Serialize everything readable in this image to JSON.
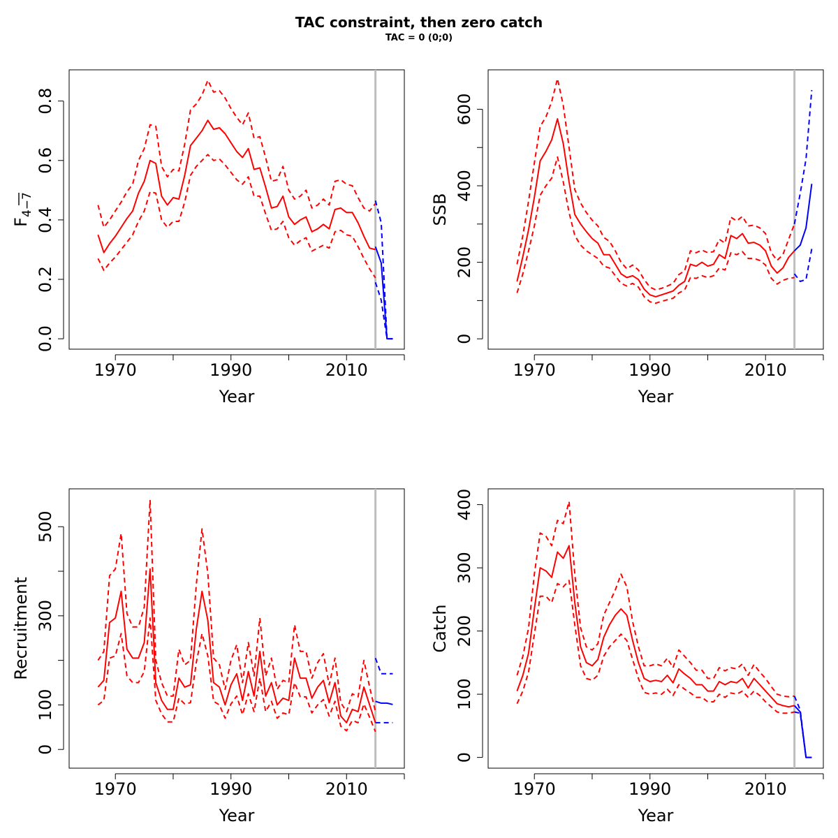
{
  "title": "TAC constraint, then zero catch",
  "subtitle": "TAC = 0 (0;0)",
  "colors": {
    "history": "#ff0000",
    "forecast": "#0000ff",
    "divider": "#bebebe",
    "axis": "#000000"
  },
  "chart_data": [
    {
      "id": "fbar",
      "type": "line",
      "xlabel": "Year",
      "ylabel": "F",
      "ylabel_sub": "4−7",
      "xlim": [
        1962,
        2020
      ],
      "ylim": [
        -0.035,
        0.905
      ],
      "xticks": [
        1970,
        1980,
        1990,
        2000,
        2010,
        2020
      ],
      "xtick_labels": [
        "1970",
        "",
        "1990",
        "",
        "2010",
        ""
      ],
      "yticks": [
        0,
        0.2,
        0.4,
        0.6,
        0.8
      ],
      "ytick_labels": [
        "0.0",
        "0.2",
        "0.4",
        "0.6",
        "0.8"
      ],
      "divider_x": 2015,
      "history": {
        "x": [
          1967,
          1968,
          1969,
          1970,
          1971,
          1972,
          1973,
          1974,
          1975,
          1976,
          1977,
          1978,
          1979,
          1980,
          1981,
          1982,
          1983,
          1984,
          1985,
          1986,
          1987,
          1988,
          1989,
          1990,
          1991,
          1992,
          1993,
          1994,
          1995,
          1996,
          1997,
          1998,
          1999,
          2000,
          2001,
          2002,
          2003,
          2004,
          2005,
          2006,
          2007,
          2008,
          2009,
          2010,
          2011,
          2012,
          2013,
          2014,
          2015
        ],
        "mid": [
          0.35,
          0.29,
          0.32,
          0.345,
          0.375,
          0.405,
          0.43,
          0.49,
          0.53,
          0.6,
          0.59,
          0.48,
          0.45,
          0.475,
          0.47,
          0.55,
          0.65,
          0.675,
          0.7,
          0.735,
          0.705,
          0.71,
          0.69,
          0.66,
          0.63,
          0.61,
          0.64,
          0.57,
          0.575,
          0.51,
          0.44,
          0.445,
          0.48,
          0.41,
          0.385,
          0.4,
          0.41,
          0.36,
          0.37,
          0.385,
          0.37,
          0.435,
          0.44,
          0.425,
          0.425,
          0.39,
          0.345,
          0.305,
          0.3
        ],
        "low": [
          0.27,
          0.23,
          0.255,
          0.275,
          0.3,
          0.325,
          0.35,
          0.395,
          0.43,
          0.495,
          0.49,
          0.4,
          0.375,
          0.395,
          0.395,
          0.46,
          0.55,
          0.58,
          0.6,
          0.62,
          0.6,
          0.605,
          0.585,
          0.56,
          0.535,
          0.52,
          0.545,
          0.48,
          0.48,
          0.42,
          0.365,
          0.37,
          0.395,
          0.34,
          0.315,
          0.33,
          0.34,
          0.295,
          0.305,
          0.315,
          0.305,
          0.36,
          0.365,
          0.35,
          0.345,
          0.31,
          0.27,
          0.235,
          0.205
        ],
        "high": [
          0.45,
          0.375,
          0.4,
          0.43,
          0.46,
          0.495,
          0.52,
          0.6,
          0.64,
          0.72,
          0.715,
          0.58,
          0.545,
          0.57,
          0.565,
          0.655,
          0.77,
          0.79,
          0.82,
          0.87,
          0.83,
          0.835,
          0.81,
          0.775,
          0.745,
          0.72,
          0.76,
          0.675,
          0.68,
          0.61,
          0.53,
          0.535,
          0.58,
          0.5,
          0.47,
          0.48,
          0.5,
          0.44,
          0.45,
          0.47,
          0.45,
          0.53,
          0.535,
          0.52,
          0.515,
          0.475,
          0.44,
          0.43,
          0.455
        ]
      },
      "forecast": {
        "x": [
          2015,
          2016,
          2017,
          2018
        ],
        "mid": [
          0.31,
          0.255,
          0.0,
          0.0
        ],
        "low": [
          0.19,
          0.13,
          0.0,
          0.0
        ],
        "high": [
          0.465,
          0.39,
          0.0,
          0.0
        ]
      }
    },
    {
      "id": "ssb",
      "type": "line",
      "xlabel": "Year",
      "ylabel": "SSB",
      "xlim": [
        1962,
        2020
      ],
      "ylim": [
        -27,
        703
      ],
      "xticks": [
        1970,
        1980,
        1990,
        2000,
        2010,
        2020
      ],
      "xtick_labels": [
        "1970",
        "",
        "1990",
        "",
        "2010",
        ""
      ],
      "yticks": [
        0,
        100,
        200,
        300,
        400,
        500,
        600
      ],
      "ytick_labels": [
        "0",
        "",
        "200",
        "",
        "400",
        "",
        "600"
      ],
      "divider_x": 2015,
      "history": {
        "x": [
          1967,
          1968,
          1969,
          1970,
          1971,
          1972,
          1973,
          1974,
          1975,
          1976,
          1977,
          1978,
          1979,
          1980,
          1981,
          1982,
          1983,
          1984,
          1985,
          1986,
          1987,
          1988,
          1989,
          1990,
          1991,
          1992,
          1993,
          1994,
          1995,
          1996,
          1997,
          1998,
          1999,
          2000,
          2001,
          2002,
          2003,
          2004,
          2005,
          2006,
          2007,
          2008,
          2009,
          2010,
          2011,
          2012,
          2013,
          2014,
          2015
        ],
        "mid": [
          150,
          215,
          285,
          370,
          465,
          490,
          520,
          575,
          510,
          410,
          325,
          300,
          280,
          262,
          250,
          220,
          220,
          195,
          170,
          160,
          165,
          155,
          130,
          115,
          110,
          115,
          120,
          125,
          140,
          150,
          195,
          190,
          200,
          190,
          195,
          220,
          210,
          270,
          262,
          275,
          250,
          252,
          245,
          230,
          190,
          172,
          185,
          213,
          230
        ],
        "low": [
          120,
          170,
          230,
          295,
          375,
          400,
          420,
          475,
          410,
          330,
          270,
          245,
          230,
          220,
          210,
          190,
          185,
          165,
          145,
          138,
          145,
          135,
          110,
          97,
          93,
          98,
          102,
          106,
          120,
          128,
          160,
          158,
          165,
          160,
          165,
          185,
          180,
          225,
          220,
          228,
          210,
          210,
          205,
          193,
          158,
          143,
          153,
          158,
          160
        ],
        "high": [
          195,
          270,
          360,
          460,
          555,
          580,
          620,
          680,
          610,
          500,
          390,
          355,
          330,
          310,
          295,
          265,
          255,
          230,
          200,
          183,
          193,
          180,
          155,
          135,
          128,
          132,
          138,
          145,
          168,
          178,
          230,
          225,
          232,
          225,
          228,
          260,
          250,
          318,
          308,
          320,
          295,
          297,
          290,
          275,
          225,
          205,
          220,
          260,
          300
        ]
      },
      "forecast": {
        "x": [
          2015,
          2016,
          2017,
          2018
        ],
        "mid": [
          230,
          245,
          290,
          405
        ],
        "low": [
          170,
          150,
          155,
          235
        ],
        "high": [
          300,
          380,
          470,
          650
        ]
      }
    },
    {
      "id": "recruitment",
      "type": "line",
      "xlabel": "Year",
      "ylabel": "Recruitment",
      "xlim": [
        1962,
        2020
      ],
      "ylim": [
        -42,
        585
      ],
      "xticks": [
        1970,
        1980,
        1990,
        2000,
        2010,
        2020
      ],
      "xtick_labels": [
        "1970",
        "",
        "1990",
        "",
        "2010",
        ""
      ],
      "yticks": [
        0,
        100,
        200,
        300,
        400,
        500
      ],
      "ytick_labels": [
        "0",
        "100",
        "",
        "300",
        "",
        "500"
      ],
      "divider_x": 2015,
      "history": {
        "x": [
          1967,
          1968,
          1969,
          1970,
          1971,
          1972,
          1973,
          1974,
          1975,
          1976,
          1977,
          1978,
          1979,
          1980,
          1981,
          1982,
          1983,
          1984,
          1985,
          1986,
          1987,
          1988,
          1989,
          1990,
          1991,
          1992,
          1993,
          1994,
          1995,
          1996,
          1997,
          1998,
          1999,
          2000,
          2001,
          2002,
          2003,
          2004,
          2005,
          2006,
          2007,
          2008,
          2009,
          2010,
          2011,
          2012,
          2013,
          2014,
          2015
        ],
        "mid": [
          140,
          155,
          285,
          295,
          355,
          225,
          205,
          205,
          240,
          405,
          150,
          110,
          90,
          90,
          160,
          140,
          145,
          270,
          355,
          290,
          150,
          140,
          100,
          145,
          170,
          110,
          175,
          120,
          220,
          120,
          150,
          100,
          115,
          110,
          205,
          160,
          160,
          115,
          140,
          155,
          105,
          150,
          75,
          60,
          90,
          85,
          140,
          100,
          60
        ],
        "low": [
          100,
          110,
          205,
          210,
          260,
          165,
          150,
          150,
          175,
          295,
          110,
          80,
          62,
          62,
          115,
          102,
          105,
          195,
          260,
          210,
          108,
          100,
          70,
          102,
          120,
          78,
          125,
          85,
          160,
          85,
          108,
          70,
          82,
          78,
          150,
          118,
          118,
          82,
          100,
          112,
          75,
          108,
          52,
          42,
          65,
          60,
          102,
          72,
          40
        ],
        "high": [
          200,
          220,
          390,
          405,
          485,
          305,
          275,
          275,
          320,
          560,
          200,
          150,
          120,
          120,
          225,
          190,
          200,
          370,
          495,
          395,
          205,
          190,
          135,
          200,
          235,
          150,
          240,
          165,
          295,
          165,
          205,
          135,
          155,
          150,
          280,
          220,
          220,
          160,
          195,
          215,
          145,
          205,
          105,
          85,
          125,
          118,
          200,
          140,
          85
        ]
      },
      "forecast": {
        "x": [
          2015,
          2016,
          2017,
          2018
        ],
        "mid": [
          108,
          104,
          104,
          101
        ],
        "low": [
          60,
          60,
          60,
          60
        ],
        "high": [
          205,
          170,
          170,
          170
        ]
      }
    },
    {
      "id": "catch",
      "type": "line",
      "xlabel": "Year",
      "ylabel": "Catch",
      "xlim": [
        1962,
        2020
      ],
      "ylim": [
        -17,
        425
      ],
      "xticks": [
        1970,
        1980,
        1990,
        2000,
        2010,
        2020
      ],
      "xtick_labels": [
        "1970",
        "",
        "1990",
        "",
        "2010",
        ""
      ],
      "yticks": [
        0,
        100,
        200,
        300,
        400
      ],
      "ytick_labels": [
        "0",
        "100",
        "200",
        "300",
        "400"
      ],
      "divider_x": 2015,
      "history": {
        "x": [
          1967,
          1968,
          1969,
          1970,
          1971,
          1972,
          1973,
          1974,
          1975,
          1976,
          1977,
          1978,
          1979,
          1980,
          1981,
          1982,
          1983,
          1984,
          1985,
          1986,
          1987,
          1988,
          1989,
          1990,
          1991,
          1992,
          1993,
          1994,
          1995,
          1996,
          1997,
          1998,
          1999,
          2000,
          2001,
          2002,
          2003,
          2004,
          2005,
          2006,
          2007,
          2008,
          2009,
          2010,
          2011,
          2012,
          2013,
          2014,
          2015
        ],
        "mid": [
          105,
          130,
          165,
          235,
          300,
          295,
          285,
          325,
          315,
          335,
          245,
          175,
          150,
          145,
          155,
          190,
          210,
          225,
          235,
          225,
          185,
          150,
          125,
          120,
          122,
          120,
          130,
          118,
          140,
          132,
          125,
          115,
          115,
          105,
          105,
          120,
          115,
          120,
          118,
          125,
          110,
          125,
          115,
          105,
          95,
          85,
          82,
          80,
          82
        ],
        "low": [
          85,
          105,
          135,
          195,
          255,
          255,
          245,
          275,
          270,
          280,
          210,
          145,
          125,
          122,
          130,
          160,
          175,
          185,
          195,
          185,
          155,
          125,
          103,
          100,
          102,
          100,
          108,
          98,
          115,
          108,
          102,
          95,
          95,
          88,
          88,
          100,
          95,
          102,
          100,
          105,
          95,
          105,
          98,
          88,
          80,
          72,
          70,
          70,
          72
        ],
        "high": [
          130,
          160,
          205,
          290,
          355,
          350,
          335,
          375,
          370,
          405,
          290,
          205,
          175,
          170,
          180,
          225,
          245,
          265,
          290,
          270,
          215,
          175,
          145,
          145,
          148,
          145,
          157,
          142,
          170,
          160,
          150,
          138,
          138,
          125,
          125,
          142,
          137,
          142,
          140,
          148,
          130,
          147,
          135,
          125,
          112,
          100,
          97,
          96,
          97
        ]
      },
      "forecast": {
        "x": [
          2015,
          2016,
          2017,
          2018
        ],
        "mid": [
          82,
          72,
          0,
          0
        ],
        "low": [
          72,
          70,
          0,
          0
        ],
        "high": [
          97,
          75,
          0,
          0
        ]
      }
    }
  ]
}
